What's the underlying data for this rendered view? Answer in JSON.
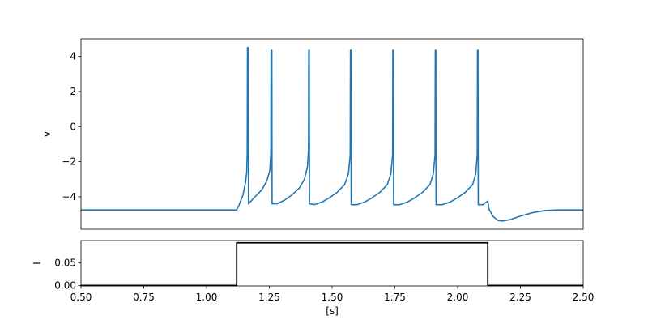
{
  "chart_data": [
    {
      "type": "line",
      "ylabel": "v",
      "xlabel": "",
      "xlim": [
        0.5,
        2.5
      ],
      "ylim": [
        -5.85,
        5.0
      ],
      "yticks": [
        4,
        2,
        0,
        -2,
        -4
      ],
      "ytick_labels": [
        "4",
        "2",
        "0",
        "−2",
        "−4"
      ],
      "show_xticks": false,
      "grid": false,
      "series": [
        {
          "color": "#1f77b4",
          "points": [
            [
              0.5,
              -4.75
            ],
            [
              1.12,
              -4.75
            ],
            [
              1.13,
              -4.45
            ],
            [
              1.145,
              -3.9
            ],
            [
              1.155,
              -3.2
            ],
            [
              1.16,
              -2.6
            ],
            [
              1.162,
              -1.5
            ],
            [
              1.163,
              4.5
            ],
            [
              1.166,
              4.5
            ],
            [
              1.167,
              -4.4
            ],
            [
              1.19,
              -4.05
            ],
            [
              1.22,
              -3.6
            ],
            [
              1.24,
              -3.1
            ],
            [
              1.252,
              -2.5
            ],
            [
              1.256,
              -1.5
            ],
            [
              1.257,
              4.35
            ],
            [
              1.26,
              4.35
            ],
            [
              1.261,
              -4.4
            ],
            [
              1.28,
              -4.4
            ],
            [
              1.31,
              -4.2
            ],
            [
              1.34,
              -3.9
            ],
            [
              1.37,
              -3.5
            ],
            [
              1.39,
              -3.0
            ],
            [
              1.402,
              -2.3
            ],
            [
              1.406,
              -1.3
            ],
            [
              1.407,
              4.35
            ],
            [
              1.409,
              4.35
            ],
            [
              1.41,
              -4.4
            ],
            [
              1.43,
              -4.45
            ],
            [
              1.46,
              -4.3
            ],
            [
              1.49,
              -4.05
            ],
            [
              1.52,
              -3.75
            ],
            [
              1.55,
              -3.3
            ],
            [
              1.565,
              -2.7
            ],
            [
              1.572,
              -1.6
            ],
            [
              1.573,
              4.35
            ],
            [
              1.575,
              4.35
            ],
            [
              1.576,
              -4.45
            ],
            [
              1.6,
              -4.45
            ],
            [
              1.63,
              -4.3
            ],
            [
              1.66,
              -4.05
            ],
            [
              1.69,
              -3.75
            ],
            [
              1.72,
              -3.3
            ],
            [
              1.734,
              -2.7
            ],
            [
              1.741,
              -1.6
            ],
            [
              1.742,
              4.35
            ],
            [
              1.744,
              4.35
            ],
            [
              1.745,
              -4.45
            ],
            [
              1.77,
              -4.45
            ],
            [
              1.8,
              -4.3
            ],
            [
              1.83,
              -4.05
            ],
            [
              1.86,
              -3.75
            ],
            [
              1.89,
              -3.3
            ],
            [
              1.903,
              -2.7
            ],
            [
              1.91,
              -1.6
            ],
            [
              1.911,
              4.35
            ],
            [
              1.913,
              4.35
            ],
            [
              1.914,
              -4.45
            ],
            [
              1.94,
              -4.45
            ],
            [
              1.97,
              -4.3
            ],
            [
              2.0,
              -4.05
            ],
            [
              2.03,
              -3.75
            ],
            [
              2.06,
              -3.3
            ],
            [
              2.072,
              -2.7
            ],
            [
              2.078,
              -1.6
            ],
            [
              2.079,
              4.35
            ],
            [
              2.081,
              4.35
            ],
            [
              2.082,
              -4.45
            ],
            [
              2.1,
              -4.45
            ],
            [
              2.115,
              -4.3
            ],
            [
              2.12,
              -4.25
            ],
            [
              2.125,
              -4.7
            ],
            [
              2.14,
              -5.1
            ],
            [
              2.16,
              -5.35
            ],
            [
              2.18,
              -5.38
            ],
            [
              2.21,
              -5.3
            ],
            [
              2.25,
              -5.1
            ],
            [
              2.3,
              -4.9
            ],
            [
              2.35,
              -4.78
            ],
            [
              2.4,
              -4.75
            ],
            [
              2.5,
              -4.75
            ]
          ]
        }
      ]
    },
    {
      "type": "line",
      "ylabel": "I",
      "xlabel": "[s]",
      "xlim": [
        0.5,
        2.5
      ],
      "ylim": [
        -0.001,
        0.1
      ],
      "yticks": [
        0.0,
        0.05
      ],
      "ytick_labels": [
        "0.00",
        "0.05"
      ],
      "xticks": [
        0.5,
        0.75,
        1.0,
        1.25,
        1.5,
        1.75,
        2.0,
        2.25,
        2.5
      ],
      "xtick_labels": [
        "0.50",
        "0.75",
        "1.00",
        "1.25",
        "1.50",
        "1.75",
        "2.00",
        "2.25",
        "2.50"
      ],
      "grid": false,
      "series": [
        {
          "color": "#000000",
          "points": [
            [
              0.5,
              0.0
            ],
            [
              1.12,
              0.0
            ],
            [
              1.12,
              0.095
            ],
            [
              2.12,
              0.095
            ],
            [
              2.12,
              0.0
            ],
            [
              2.5,
              0.0
            ]
          ]
        }
      ]
    }
  ]
}
